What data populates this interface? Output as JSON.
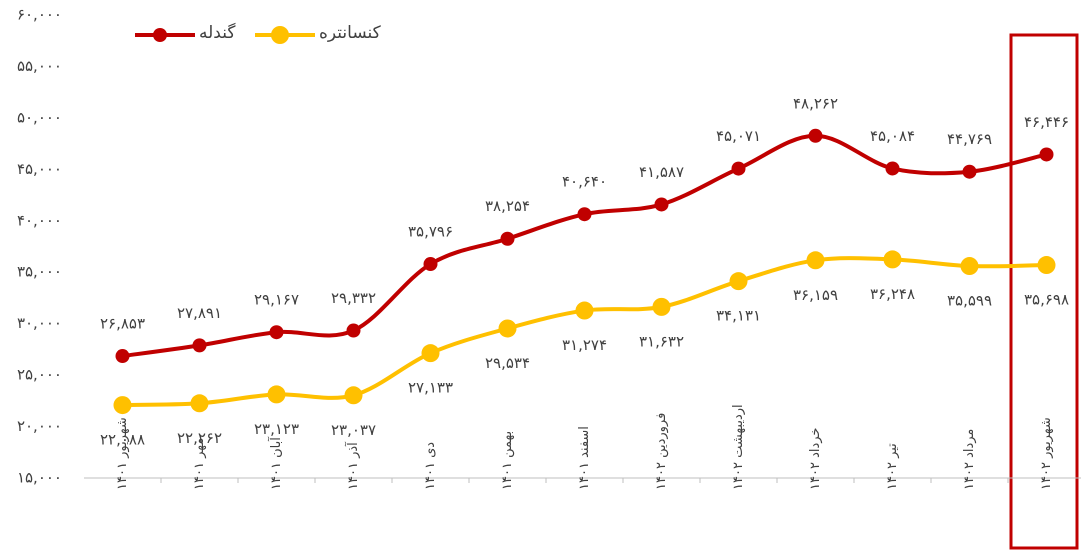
{
  "chart_data": {
    "type": "line",
    "categories": [
      "شهریور ۱۴۰۱",
      "مهر ۱۴۰۱",
      "آبان ۱۴۰۱",
      "آذر ۱۴۰۱",
      "دی ۱۴۰۱",
      "بهمن ۱۴۰۱",
      "اسفند ۱۴۰۱",
      "فروردین ۱۴۰۲",
      "اردیبهشت ۱۴۰۲",
      "خرداد ۱۴۰۲",
      "تیر ۱۴۰۲",
      "مرداد ۱۴۰۲",
      "شهریور ۱۴۰۲"
    ],
    "series": [
      {
        "name": "گندله",
        "color": "#c00000",
        "values": [
          26853,
          27891,
          29167,
          29332,
          35796,
          38254,
          40640,
          41587,
          45071,
          48262,
          45084,
          44769,
          46446
        ],
        "value_labels": [
          "۲۶,۸۵۳",
          "۲۷,۸۹۱",
          "۲۹,۱۶۷",
          "۲۹,۳۳۲",
          "۳۵,۷۹۶",
          "۳۸,۲۵۴",
          "۴۰,۶۴۰",
          "۴۱,۵۸۷",
          "۴۵,۰۷۱",
          "۴۸,۲۶۲",
          "۴۵,۰۸۴",
          "۴۴,۷۶۹",
          "۴۶,۴۴۶"
        ]
      },
      {
        "name": "کنسانتره",
        "color": "#ffc000",
        "values": [
          22088,
          22262,
          23123,
          23037,
          27133,
          29534,
          31274,
          31632,
          34131,
          36159,
          36248,
          35599,
          35698
        ],
        "value_labels": [
          "۲۲,۰۸۸",
          "۲۲,۲۶۲",
          "۲۳,۱۲۳",
          "۲۳,۰۳۷",
          "۲۷,۱۳۳",
          "۲۹,۵۳۴",
          "۳۱,۲۷۴",
          "۳۱,۶۳۲",
          "۳۴,۱۳۱",
          "۳۶,۱۵۹",
          "۳۶,۲۴۸",
          "۳۵,۵۹۹",
          "۳۵,۶۹۸"
        ]
      }
    ],
    "ylim": [
      15000,
      60000
    ],
    "yticks": [
      {
        "value": 15000,
        "label": "۱۵,۰۰۰"
      },
      {
        "value": 20000,
        "label": "۲۰,۰۰۰"
      },
      {
        "value": 25000,
        "label": "۲۵,۰۰۰"
      },
      {
        "value": 30000,
        "label": "۳۰,۰۰۰"
      },
      {
        "value": 35000,
        "label": "۳۵,۰۰۰"
      },
      {
        "value": 40000,
        "label": "۴۰,۰۰۰"
      },
      {
        "value": 45000,
        "label": "۴۵,۰۰۰"
      },
      {
        "value": 50000,
        "label": "۵۰,۰۰۰"
      },
      {
        "value": 55000,
        "label": "۵۵,۰۰۰"
      },
      {
        "value": 60000,
        "label": "۶۰,۰۰۰"
      }
    ],
    "grid": false,
    "legend": "top-left"
  }
}
